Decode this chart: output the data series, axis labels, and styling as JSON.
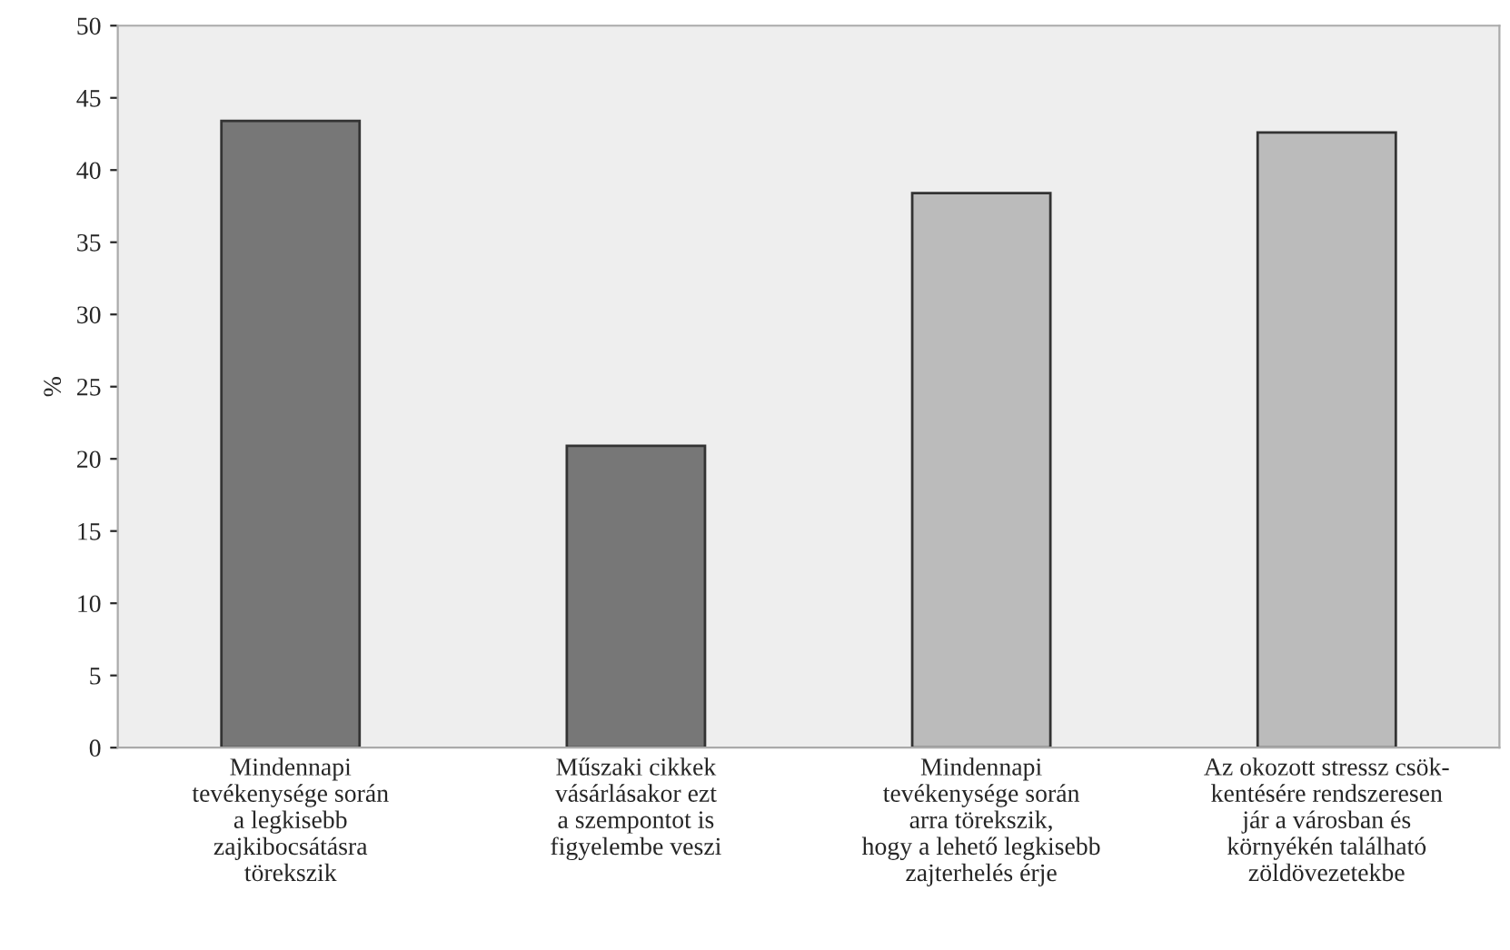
{
  "chart_data": {
    "type": "bar",
    "ylabel": "%",
    "categories": [
      "Mindennapi\ntevékenysége során\na legkisebb\nzajkibocsátásra\ntörekszik",
      "Műszaki cikkek\nvásárlásakor ezt\na szempontot is\nfigyelembe veszi",
      "Mindennapi\ntevékenysége során\narra törekszik,\nhogy a lehető legkisebb\nzajterhelés érje",
      "Az okozott stressz csök-\nkentésére rendszeresen\njár a városban és\nkörnyékén található\nzöldövezetekbe"
    ],
    "values": [
      43.4,
      20.9,
      38.4,
      42.6
    ],
    "colors": [
      "#777777",
      "#777777",
      "#bbbbbb",
      "#bbbbbb"
    ],
    "ylim": [
      0,
      50
    ],
    "yticks": [
      0,
      5,
      10,
      15,
      20,
      25,
      30,
      35,
      40,
      45,
      50
    ]
  }
}
